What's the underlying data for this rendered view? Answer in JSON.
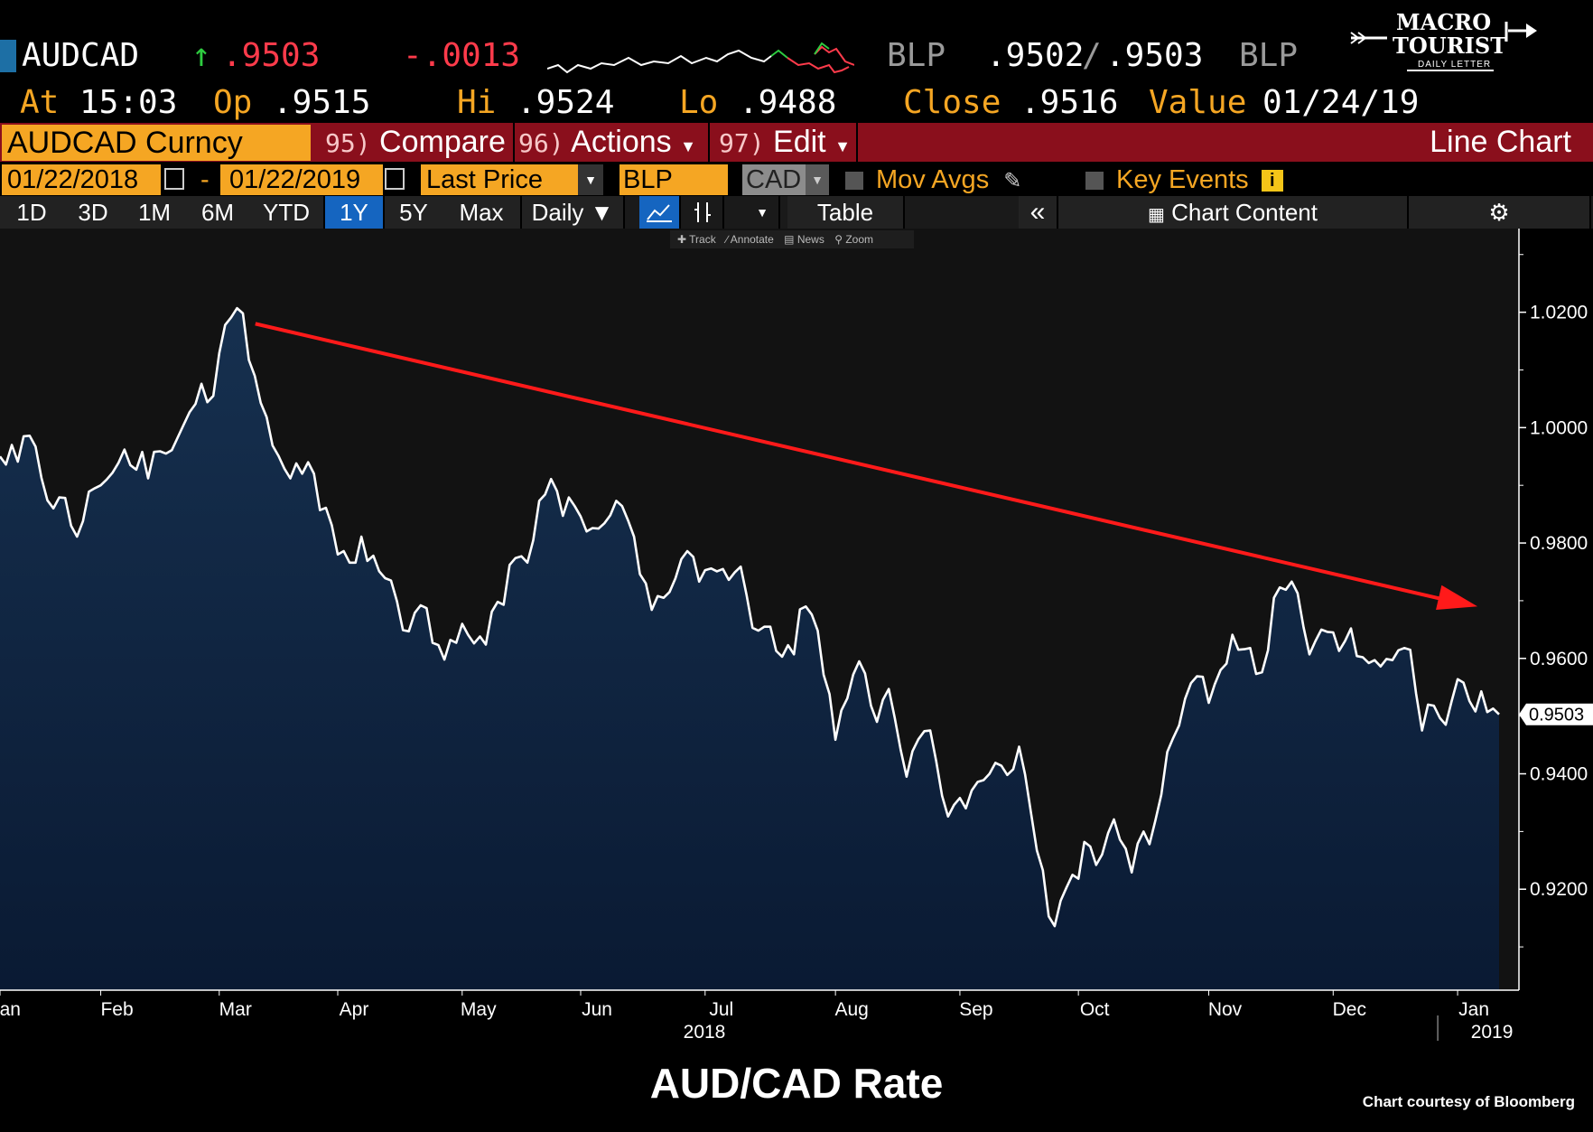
{
  "header": {
    "ticker": "AUDCAD",
    "arrow": "↑",
    "last": ".9503",
    "change": "-.0013",
    "bid_src": "BLP",
    "bid": ".9502",
    "sep": "/",
    "ask": ".9503",
    "ask_src": "BLP",
    "at_label": "At",
    "at_time": "15:03",
    "open_label": "Op",
    "open": ".9515",
    "hi_label": "Hi",
    "hi": ".9524",
    "lo_label": "Lo",
    "lo": ".9488",
    "close_label": "Close",
    "close": ".9516",
    "value_label": "Value",
    "value_date": "01/24/19"
  },
  "logo": {
    "line1": "MACRO",
    "line2": "TOURIST",
    "line3": "DAILY LETTER"
  },
  "menubar": {
    "security": "AUDCAD Curncy",
    "compare_num": "95)",
    "compare": "Compare",
    "actions_num": "96)",
    "actions": "Actions",
    "edit_num": "97)",
    "edit": "Edit",
    "chart_type": "Line Chart"
  },
  "params": {
    "start_date": "01/22/2018",
    "dash": "-",
    "end_date": "01/22/2019",
    "field": "Last Price",
    "source": "BLP",
    "currency": "CAD",
    "mov_avgs": "Mov Avgs",
    "key_events": "Key Events"
  },
  "toolbar": {
    "periods": [
      "1D",
      "3D",
      "1M",
      "6M",
      "YTD",
      "1Y",
      "5Y",
      "Max"
    ],
    "active_period": "1Y",
    "frequency": "Daily ▼",
    "table": "Table",
    "collapse": "«",
    "chart_content": "Chart Content"
  },
  "minitools": {
    "track": "Track",
    "annotate": "Annotate",
    "news": "News",
    "zoom": "Zoom"
  },
  "footer": {
    "title": "AUD/CAD Rate",
    "credit": "Chart courtesy of Bloomberg"
  },
  "colors": {
    "line": "#ffffff",
    "area_top": "#16304f",
    "area_bottom": "#0a1a33",
    "trend": "#ff1a1a",
    "bg": "#121212"
  },
  "chart_data": {
    "type": "area",
    "title": "AUD/CAD Rate",
    "y_ticks": [
      "1.0200",
      "1.0000",
      "0.9800",
      "0.9600",
      "0.9400",
      "0.9200"
    ],
    "ylim": [
      0.9025,
      1.0345
    ],
    "x_month_labels": [
      "Jan",
      "Feb",
      "Mar",
      "Apr",
      "May",
      "Jun",
      "Jul",
      "Aug",
      "Sep",
      "Oct",
      "Nov",
      "Dec",
      "Jan"
    ],
    "x_year_labels": [
      "2018",
      "2019"
    ],
    "last_value_label": "0.9503",
    "series": [
      {
        "values": [
          0.995,
          0.9936,
          0.997,
          0.9941,
          0.9985,
          0.9986,
          0.9967,
          0.9913,
          0.9874,
          0.986,
          0.9879,
          0.9878,
          0.983,
          0.9811,
          0.9838,
          0.9889,
          0.9895,
          0.99,
          0.991,
          0.9922,
          0.9939,
          0.9962,
          0.9935,
          0.9927,
          0.9958,
          0.9912,
          0.9958,
          0.9959,
          0.9955,
          0.9961,
          0.9983,
          1.0005,
          1.0027,
          1.0041,
          1.0076,
          1.0044,
          1.0055,
          1.0129,
          1.0178,
          1.0191,
          1.0207,
          1.0198,
          1.0117,
          1.009,
          1.0043,
          1.0018,
          0.9969,
          0.9951,
          0.9929,
          0.9912,
          0.9938,
          0.992,
          0.994,
          0.992,
          0.9857,
          0.9861,
          0.9831,
          0.978,
          0.9786,
          0.9766,
          0.9766,
          0.9811,
          0.9769,
          0.9778,
          0.9751,
          0.9739,
          0.9735,
          0.9699,
          0.9649,
          0.9647,
          0.9679,
          0.9692,
          0.9687,
          0.9627,
          0.9623,
          0.9598,
          0.9632,
          0.9627,
          0.966,
          0.9641,
          0.9626,
          0.9638,
          0.9624,
          0.9681,
          0.9698,
          0.9693,
          0.9762,
          0.9774,
          0.9777,
          0.9766,
          0.9805,
          0.9873,
          0.9884,
          0.9911,
          0.989,
          0.9847,
          0.9879,
          0.9864,
          0.9846,
          0.982,
          0.9826,
          0.9825,
          0.9834,
          0.9848,
          0.9873,
          0.9864,
          0.9839,
          0.9811,
          0.9746,
          0.973,
          0.9684,
          0.9708,
          0.9705,
          0.9715,
          0.9739,
          0.9772,
          0.9786,
          0.9776,
          0.9733,
          0.9753,
          0.9756,
          0.9751,
          0.9755,
          0.9736,
          0.9749,
          0.9759,
          0.971,
          0.9653,
          0.9648,
          0.9655,
          0.9655,
          0.9613,
          0.9603,
          0.9623,
          0.9607,
          0.9685,
          0.969,
          0.9676,
          0.9648,
          0.9572,
          0.9538,
          0.9459,
          0.951,
          0.9531,
          0.9572,
          0.9595,
          0.9574,
          0.9518,
          0.949,
          0.9528,
          0.9547,
          0.9497,
          0.9442,
          0.9395,
          0.9439,
          0.946,
          0.9474,
          0.9475,
          0.9422,
          0.9362,
          0.9326,
          0.9346,
          0.9358,
          0.934,
          0.9371,
          0.9386,
          0.9389,
          0.94,
          0.9419,
          0.9414,
          0.9398,
          0.9408,
          0.9447,
          0.9399,
          0.9332,
          0.9267,
          0.9233,
          0.9153,
          0.9136,
          0.918,
          0.9203,
          0.9225,
          0.9218,
          0.9282,
          0.9274,
          0.9242,
          0.926,
          0.9297,
          0.9321,
          0.9286,
          0.927,
          0.9229,
          0.9279,
          0.93,
          0.9278,
          0.9319,
          0.9364,
          0.9438,
          0.9462,
          0.9484,
          0.953,
          0.9557,
          0.9569,
          0.9568,
          0.9523,
          0.9555,
          0.958,
          0.9591,
          0.9641,
          0.9615,
          0.9616,
          0.9618,
          0.9573,
          0.9576,
          0.9614,
          0.9705,
          0.9723,
          0.9719,
          0.9733,
          0.9713,
          0.9654,
          0.9607,
          0.963,
          0.965,
          0.9646,
          0.9645,
          0.9613,
          0.963,
          0.9652,
          0.9604,
          0.9602,
          0.9592,
          0.9597,
          0.9586,
          0.9599,
          0.9597,
          0.9614,
          0.9618,
          0.9615,
          0.9539,
          0.9475,
          0.952,
          0.9518,
          0.9497,
          0.9485,
          0.9526,
          0.9564,
          0.9558,
          0.9526,
          0.9508,
          0.9543,
          0.9507,
          0.9513,
          0.9503
        ]
      }
    ],
    "annotations": [
      {
        "type": "trend-arrow",
        "from": [
          "Mar",
          1.018
        ],
        "to": [
          "Jan",
          0.969
        ]
      }
    ]
  }
}
